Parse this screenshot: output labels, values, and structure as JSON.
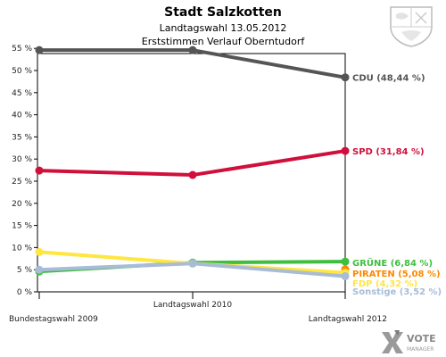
{
  "title": "Stadt Salzkotten",
  "subtitle": "Landtagswahl 13.05.2012",
  "subtitle2": "Erststimmen Verlauf Oberntudorf",
  "logo": {
    "text_vote": "VOTE",
    "text_manager": "MANAGER"
  },
  "chart_data": {
    "type": "line",
    "title": "Stadt Salzkotten",
    "x": [
      "Bundestagswahl 2009",
      "Landtagswahl 2010",
      "Landtagswahl 2012"
    ],
    "xlabel": "",
    "ylabel": "",
    "ylim": [
      0,
      58
    ],
    "yticks": [
      "0 %",
      "5 %",
      "10 %",
      "15 %",
      "20 %",
      "25 %",
      "30 %",
      "35 %",
      "40 %",
      "45 %",
      "50 %",
      "55 %"
    ],
    "grid": false,
    "legend": "right",
    "series": [
      {
        "name": "CDU",
        "label": "CDU (48,44 %)",
        "color": "#555555",
        "values": [
          54.6,
          54.6,
          48.44
        ]
      },
      {
        "name": "SPD",
        "label": "SPD (31,84 %)",
        "color": "#d0103a",
        "values": [
          27.4,
          26.4,
          31.84
        ]
      },
      {
        "name": "GRÜNE",
        "label": "GRÜNE (6,84 %)",
        "color": "#3fbe3f",
        "values": [
          4.6,
          6.6,
          6.84
        ]
      },
      {
        "name": "PIRATEN",
        "label": "PIRATEN (5,08 %)",
        "color": "#ff8800",
        "values": [
          null,
          null,
          5.08
        ]
      },
      {
        "name": "FDP",
        "label": "FDP (4,32 %)",
        "color": "#ffe640",
        "values": [
          9.0,
          6.4,
          4.32
        ]
      },
      {
        "name": "Sonstige",
        "label": "Sonstige (3,52 %)",
        "color": "#a8bcd8",
        "values": [
          5.0,
          6.4,
          3.52
        ]
      }
    ]
  }
}
